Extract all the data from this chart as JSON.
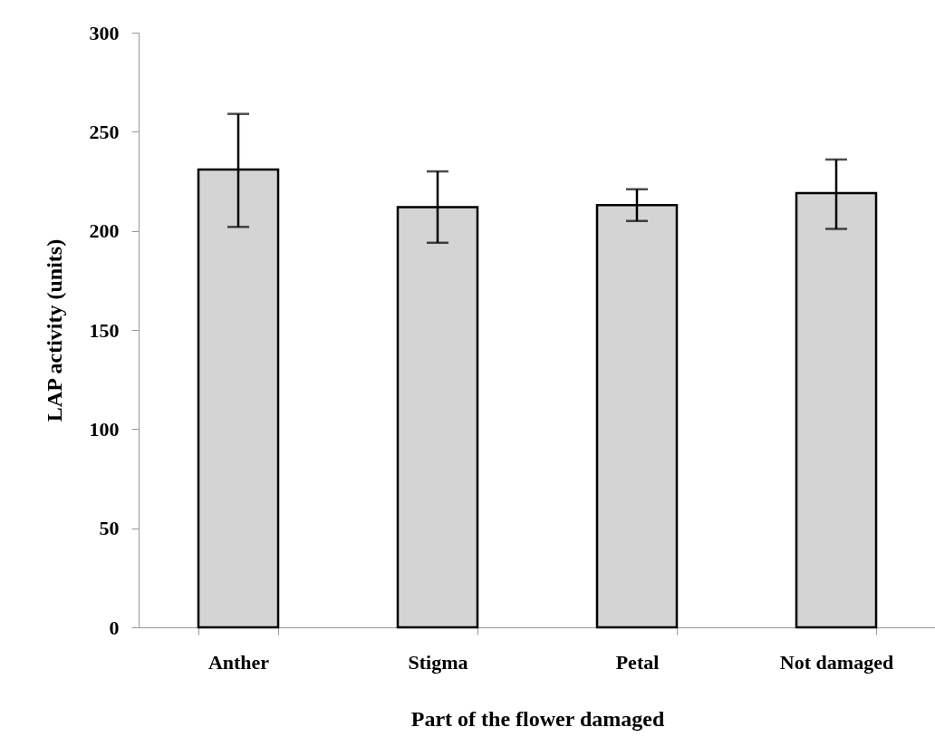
{
  "chart_data": {
    "type": "bar",
    "xlabel": "Part of the flower damaged",
    "ylabel": "LAP activity (units)",
    "categories": [
      "Anther",
      "Stigma",
      "Petal",
      "Not damaged"
    ],
    "values": [
      231,
      212,
      213,
      219
    ],
    "errors": [
      [
        202,
        259
      ],
      [
        194,
        230
      ],
      [
        205,
        221
      ],
      [
        201,
        236
      ]
    ],
    "color": "#d4d4d4",
    "ylim": [
      0,
      300
    ],
    "yticks": [
      0,
      50,
      100,
      150,
      200,
      250,
      300
    ],
    "grid": false
  }
}
